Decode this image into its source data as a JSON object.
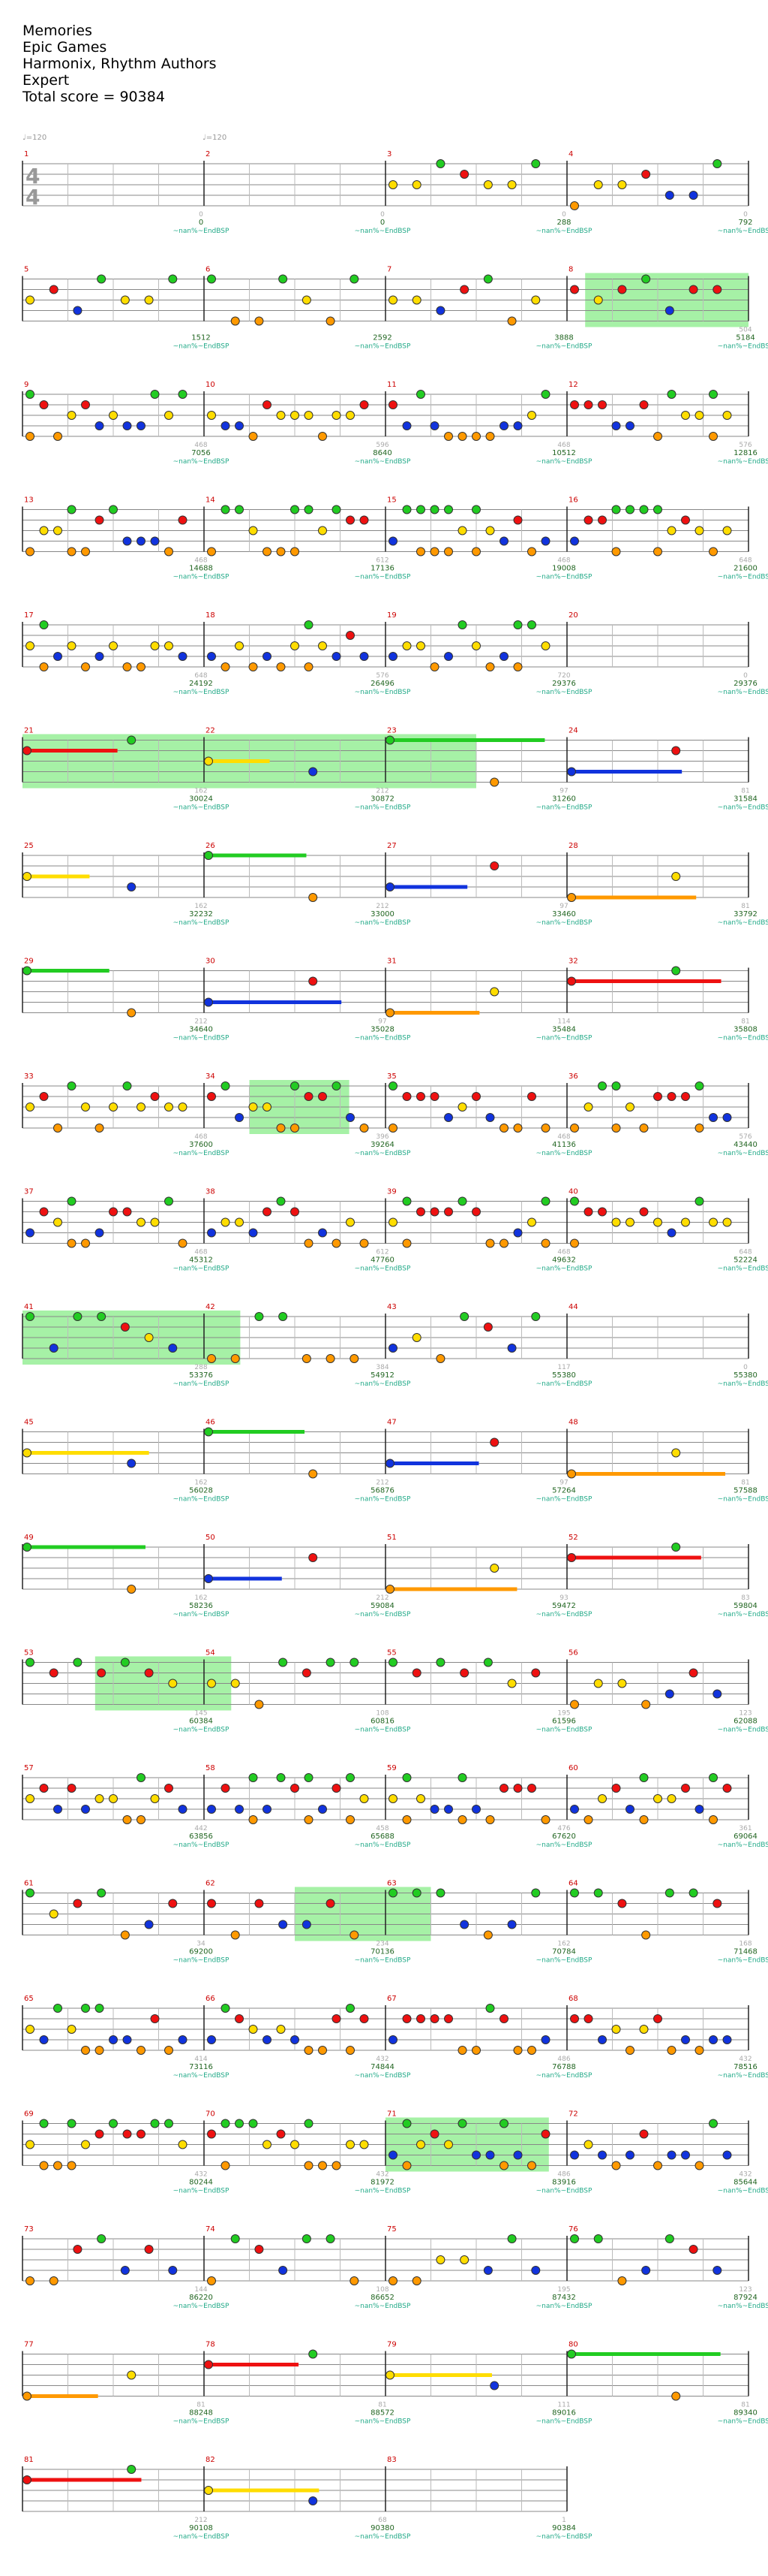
{
  "song": {
    "title": "Memories",
    "artist": "Epic Games",
    "charter": "Harmonix, Rhythm Authors",
    "difficulty": "Expert",
    "total_score_label": "Total score = 90384"
  },
  "tempo_marks": [
    "♩=120",
    "♩=120"
  ],
  "colors": {
    "green": "#22cc22",
    "red": "#ee1111",
    "yellow": "#ffdd00",
    "blue": "#1133dd",
    "orange": "#ff9900",
    "measure_number": "#cc0000",
    "score_text": "#226622",
    "sp_text": "#22aa88",
    "sp_highlight": "#90ee90"
  },
  "sp_label": "~nan%~EndBSP",
  "rows": [
    {
      "m": [
        1,
        2,
        3,
        4
      ],
      "scores": [
        "0",
        "0",
        "288",
        "792"
      ],
      "counts": [
        "0",
        "0",
        "0",
        "0"
      ],
      "sp": [],
      "dense": [
        0,
        0,
        1,
        1
      ]
    },
    {
      "m": [
        5,
        6,
        7,
        8
      ],
      "scores": [
        "1512",
        "2592",
        "3888",
        "5184"
      ],
      "counts": [
        "",
        "",
        "",
        "504"
      ],
      "sp": [
        [
          3,
          0.1,
          1.0
        ]
      ],
      "dense": [
        1,
        1,
        1,
        1
      ]
    },
    {
      "m": [
        9,
        10,
        11,
        12
      ],
      "scores": [
        "7056",
        "8640",
        "10512",
        "12816"
      ],
      "counts": [
        "468",
        "596",
        "468",
        "576"
      ],
      "sp": [],
      "dense": [
        2,
        2,
        2,
        2
      ]
    },
    {
      "m": [
        13,
        14,
        15,
        16
      ],
      "scores": [
        "14688",
        "17136",
        "19008",
        "21600"
      ],
      "counts": [
        "468",
        "612",
        "468",
        "648"
      ],
      "sp": [],
      "dense": [
        2,
        2,
        2,
        2
      ]
    },
    {
      "m": [
        17,
        18,
        19,
        20
      ],
      "scores": [
        "24192",
        "26496",
        "29376",
        "29376"
      ],
      "counts": [
        "648",
        "576",
        "720",
        "0"
      ],
      "sp": [],
      "dense": [
        2,
        2,
        2,
        0
      ]
    },
    {
      "m": [
        21,
        22,
        23,
        24
      ],
      "scores": [
        "30024",
        "30872",
        "31260",
        "31584"
      ],
      "counts": [
        "162",
        "212",
        "97",
        "81"
      ],
      "sp": [
        [
          0,
          0,
          1.0
        ],
        [
          1,
          0,
          1.0
        ],
        [
          2,
          0,
          0.5
        ]
      ],
      "dense": [
        3,
        3,
        3,
        3
      ]
    },
    {
      "m": [
        25,
        26,
        27,
        28
      ],
      "scores": [
        "32232",
        "33000",
        "33460",
        "33792"
      ],
      "counts": [
        "162",
        "212",
        "97",
        "81"
      ],
      "sp": [],
      "dense": [
        3,
        3,
        3,
        3
      ]
    },
    {
      "m": [
        29,
        30,
        31,
        32
      ],
      "scores": [
        "34640",
        "35028",
        "35484",
        "35808"
      ],
      "counts": [
        "212",
        "97",
        "114",
        "81"
      ],
      "sp": [],
      "dense": [
        3,
        3,
        3,
        3
      ]
    },
    {
      "m": [
        33,
        34,
        35,
        36
      ],
      "scores": [
        "37600",
        "39264",
        "41136",
        "43440"
      ],
      "counts": [
        "468",
        "396",
        "468",
        "576"
      ],
      "sp": [
        [
          1,
          0.25,
          0.8
        ]
      ],
      "dense": [
        2,
        2,
        2,
        2
      ]
    },
    {
      "m": [
        37,
        38,
        39,
        40
      ],
      "scores": [
        "45312",
        "47760",
        "49632",
        "52224"
      ],
      "counts": [
        "468",
        "612",
        "468",
        "648"
      ],
      "sp": [],
      "dense": [
        2,
        2,
        2,
        2
      ]
    },
    {
      "m": [
        41,
        42,
        43,
        44
      ],
      "scores": [
        "53376",
        "54912",
        "55380",
        "55380"
      ],
      "counts": [
        "288",
        "384",
        "117",
        "0"
      ],
      "sp": [
        [
          0,
          0,
          1.0
        ],
        [
          1,
          0,
          0.2
        ]
      ],
      "dense": [
        1,
        1,
        1,
        0
      ]
    },
    {
      "m": [
        45,
        46,
        47,
        48
      ],
      "scores": [
        "56028",
        "56876",
        "57264",
        "57588"
      ],
      "counts": [
        "162",
        "212",
        "97",
        "81"
      ],
      "sp": [],
      "dense": [
        3,
        3,
        3,
        3
      ]
    },
    {
      "m": [
        49,
        50,
        51,
        52
      ],
      "scores": [
        "58236",
        "59084",
        "59472",
        "59804"
      ],
      "counts": [
        "162",
        "212",
        "93",
        "83"
      ],
      "sp": [],
      "dense": [
        3,
        3,
        3,
        3
      ]
    },
    {
      "m": [
        53,
        54,
        55,
        56
      ],
      "scores": [
        "60384",
        "60816",
        "61596",
        "62088"
      ],
      "counts": [
        "145",
        "108",
        "195",
        "123"
      ],
      "sp": [
        [
          0,
          0.4,
          1.0
        ],
        [
          1,
          0,
          0.15
        ]
      ],
      "dense": [
        1,
        1,
        1,
        1
      ]
    },
    {
      "m": [
        57,
        58,
        59,
        60
      ],
      "scores": [
        "63856",
        "65688",
        "67620",
        "69064"
      ],
      "counts": [
        "442",
        "458",
        "476",
        "361"
      ],
      "sp": [],
      "dense": [
        2,
        2,
        2,
        2
      ]
    },
    {
      "m": [
        61,
        62,
        63,
        64
      ],
      "scores": [
        "69200",
        "70136",
        "70784",
        "71468"
      ],
      "counts": [
        "34",
        "234",
        "162",
        "168"
      ],
      "sp": [
        [
          1,
          0.5,
          1.0
        ],
        [
          2,
          0,
          0.25
        ]
      ],
      "dense": [
        1,
        1,
        1,
        1
      ]
    },
    {
      "m": [
        65,
        66,
        67,
        68
      ],
      "scores": [
        "73116",
        "74844",
        "76788",
        "78516"
      ],
      "counts": [
        "414",
        "432",
        "486",
        "432"
      ],
      "sp": [],
      "dense": [
        2,
        2,
        2,
        2
      ]
    },
    {
      "m": [
        69,
        70,
        71,
        72
      ],
      "scores": [
        "80244",
        "81972",
        "83916",
        "85644"
      ],
      "counts": [
        "432",
        "432",
        "486",
        "432"
      ],
      "sp": [
        [
          2,
          0,
          0.9
        ]
      ],
      "dense": [
        2,
        2,
        2,
        2
      ]
    },
    {
      "m": [
        73,
        74,
        75,
        76
      ],
      "scores": [
        "86220",
        "86652",
        "87432",
        "87924"
      ],
      "counts": [
        "144",
        "108",
        "195",
        "123"
      ],
      "sp": [],
      "dense": [
        1,
        1,
        1,
        1
      ]
    },
    {
      "m": [
        77,
        78,
        79,
        80
      ],
      "scores": [
        "88248",
        "88572",
        "89016",
        "89340"
      ],
      "counts": [
        "81",
        "81",
        "111",
        "81"
      ],
      "sp": [],
      "dense": [
        3,
        3,
        3,
        3
      ]
    },
    {
      "m": [
        81,
        82,
        83
      ],
      "scores": [
        "90108",
        "90380",
        "90384"
      ],
      "counts": [
        "212",
        "68",
        "1"
      ],
      "sp": [],
      "dense": [
        3,
        3,
        0
      ]
    }
  ]
}
